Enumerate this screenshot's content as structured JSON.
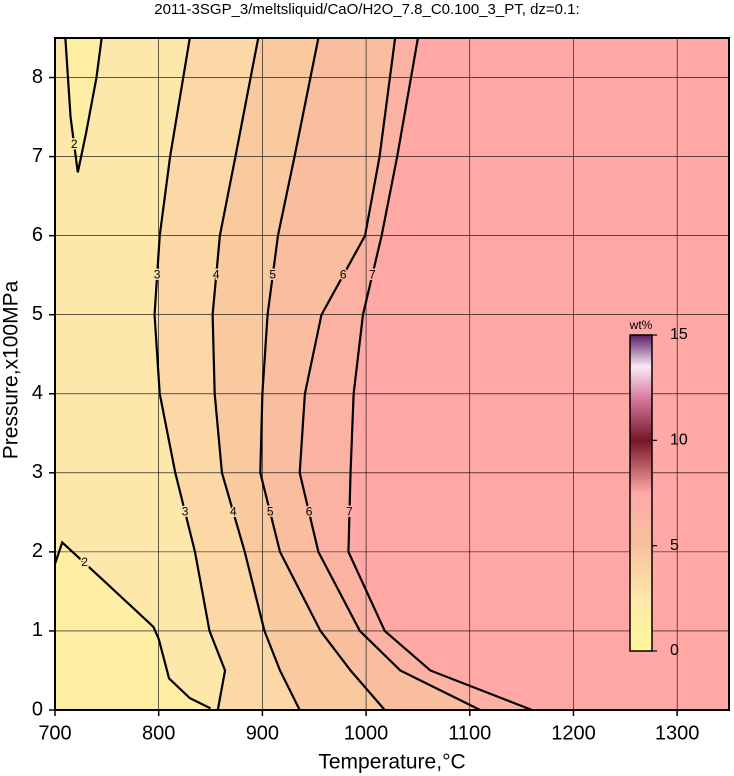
{
  "chart_data": {
    "type": "contour",
    "title": "2011-3SGP_3/meltsliquid/CaO/H2O_7.8_C0.100_3_PT, dz=0.1:",
    "x_label": "Temperature,°C",
    "y_label": "Pressure,x100MPa",
    "xlim": [
      700,
      1350
    ],
    "ylim": [
      0,
      8.5
    ],
    "xticks": [
      700,
      800,
      900,
      1000,
      1100,
      1200,
      1300
    ],
    "yticks": [
      0,
      1,
      2,
      3,
      4,
      5,
      6,
      7,
      8
    ],
    "grid": true,
    "contours": [
      {
        "level": 2,
        "x": [
          700,
          707,
          750,
          795,
          800,
          810,
          830,
          850,
          null,
          710,
          715,
          722,
          730,
          740,
          745
        ],
        "y": [
          1.85,
          2.12,
          1.6,
          1.05,
          0.9,
          0.4,
          0.15,
          0.02,
          null,
          8.5,
          7.5,
          6.8,
          7.3,
          8,
          8.5
        ]
      },
      {
        "level": 3,
        "x": [
          830,
          811,
          801,
          796,
          801,
          816,
          835,
          849,
          864,
          857
        ],
        "y": [
          8.5,
          7,
          6,
          5,
          4,
          3,
          2,
          1,
          0.5,
          0
        ]
      },
      {
        "level": 4,
        "x": [
          896,
          874,
          859,
          852,
          854,
          861,
          883,
          902,
          917,
          936
        ],
        "y": [
          8.5,
          7,
          6,
          5,
          4,
          3,
          2,
          1,
          0.5,
          0
        ]
      },
      {
        "level": 5,
        "x": [
          954,
          931,
          915,
          905,
          900,
          898,
          917,
          956,
          985,
          1018
        ],
        "y": [
          8.5,
          7,
          6,
          5,
          4,
          3,
          2,
          1,
          0.5,
          0
        ]
      },
      {
        "level": 6,
        "x": [
          1028,
          1013,
          999,
          957,
          941,
          936,
          954,
          994,
          1033,
          1110
        ],
        "y": [
          8.5,
          7,
          6,
          5,
          4,
          3,
          2,
          1,
          0.5,
          0
        ]
      },
      {
        "level": 7,
        "x": [
          1050,
          1030,
          1015,
          997,
          988,
          985,
          983,
          1018,
          1062,
          1160
        ],
        "y": [
          8.5,
          7,
          6,
          5,
          4,
          3,
          2,
          1,
          0.5,
          0
        ]
      }
    ],
    "colorbar": {
      "label": "wt%",
      "lim": [
        0,
        15
      ],
      "ticks": [
        0,
        5,
        10,
        15
      ],
      "stops": [
        {
          "value": 0,
          "color": "#fff89a"
        },
        {
          "value": 2.5,
          "color": "#fde7aa"
        },
        {
          "value": 5,
          "color": "#f8c29e"
        },
        {
          "value": 7.5,
          "color": "#ffa8a6"
        },
        {
          "value": 10,
          "color": "#761628"
        },
        {
          "value": 12,
          "color": "#d87aa0"
        },
        {
          "value": 13.5,
          "color": "#fbe8f4"
        },
        {
          "value": 15,
          "color": "#5a1c68"
        }
      ]
    }
  }
}
